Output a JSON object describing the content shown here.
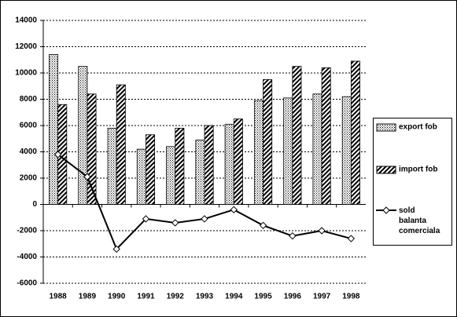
{
  "chart_data": {
    "type": "bar",
    "categories": [
      "1988",
      "1989",
      "1990",
      "1991",
      "1992",
      "1993",
      "1994",
      "1995",
      "1996",
      "1997",
      "1998"
    ],
    "series": [
      {
        "name": "export fob",
        "type": "bar",
        "pattern": "dots",
        "color": "#000000",
        "values": [
          11400,
          10500,
          5800,
          4200,
          4400,
          4900,
          6100,
          7900,
          8100,
          8400,
          8200
        ]
      },
      {
        "name": "import fob",
        "type": "bar",
        "pattern": "hatch",
        "color": "#000000",
        "values": [
          7600,
          8400,
          9100,
          5300,
          5800,
          6000,
          6500,
          9500,
          10500,
          10400,
          10900
        ]
      },
      {
        "name": "sold balanta comerciala",
        "type": "line",
        "color": "#000000",
        "values": [
          3800,
          2100,
          -3400,
          -1100,
          -1400,
          -1100,
          -400,
          -1600,
          -2400,
          -2000,
          -2600
        ]
      }
    ],
    "ylim": [
      -6000,
      14000
    ],
    "yticks": [
      -6000,
      -4000,
      -2000,
      0,
      2000,
      4000,
      6000,
      8000,
      10000,
      12000,
      14000
    ],
    "grid": true,
    "legend": "right"
  }
}
